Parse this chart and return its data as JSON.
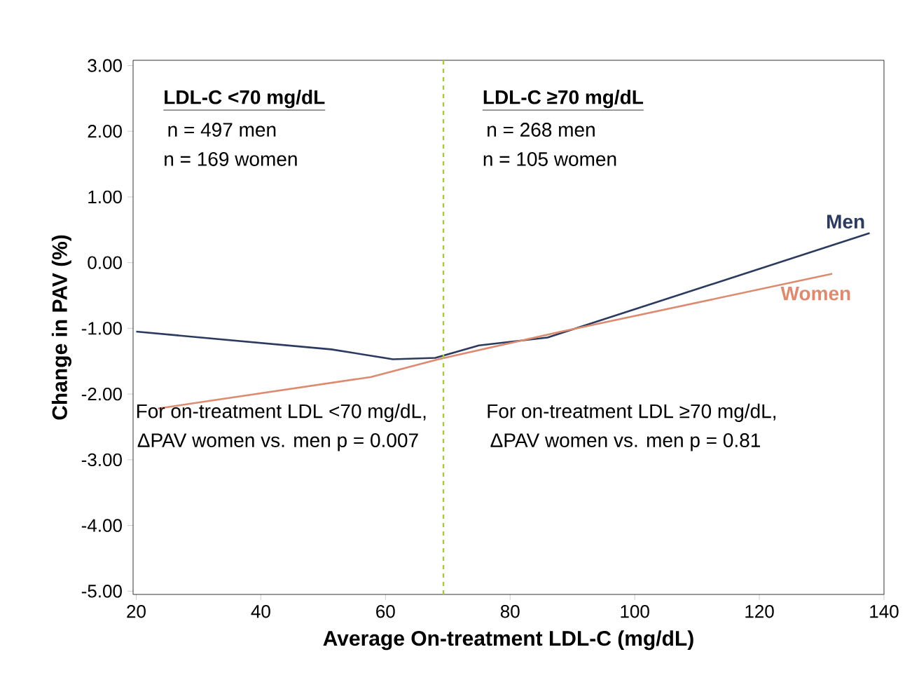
{
  "chart_data": {
    "type": "line",
    "xlabel": "Average On-treatment LDL-C (mg/dL)",
    "ylabel": "Change in PAV (%)",
    "xlim": [
      19.5,
      140
    ],
    "ylim": [
      -5.05,
      3.08
    ],
    "xticks": [
      20,
      40,
      60,
      80,
      100,
      120,
      140
    ],
    "yticks": [
      {
        "value": 3,
        "label": "3.00"
      },
      {
        "value": 2,
        "label": "2.00"
      },
      {
        "value": 1,
        "label": "1.00"
      },
      {
        "value": 0,
        "label": "0.00"
      },
      {
        "value": -1,
        "label": "-1.00"
      },
      {
        "value": -2,
        "label": "-2.00"
      },
      {
        "value": -3,
        "label": "-3.00"
      },
      {
        "value": -4,
        "label": "-4.00"
      },
      {
        "value": -5,
        "label": "-5.00"
      }
    ],
    "grid": false,
    "marker": "none",
    "line_style": "solid",
    "series": [
      {
        "name": "Men",
        "color": "#2b3a5e",
        "x": [
          20,
          51.3,
          61.2,
          68,
          75,
          86,
          137.7
        ],
        "values": [
          -1.05,
          -1.32,
          -1.47,
          -1.45,
          -1.26,
          -1.14,
          0.45
        ]
      },
      {
        "name": "Women",
        "color": "#dc8a70",
        "x": [
          23.5,
          57.7,
          68.5,
          87.7,
          131.7
        ],
        "values": [
          -2.22,
          -1.74,
          -1.47,
          -1.06,
          -0.17
        ]
      }
    ],
    "ref_lines": [
      {
        "axis": "x",
        "value": 69.3,
        "color": "#a8c44a",
        "line_style": "dashed"
      }
    ],
    "annotations": [
      "LDL-C <70 mg/dL",
      "n = 497 men",
      "n = 169 women",
      "LDL-C ≥70 mg/dL",
      "n = 268 men",
      "n = 105 women",
      "For on-treatment LDL <70 mg/dL,",
      "ΔPAV women vs. men p = 0.007",
      "For on-treatment LDL ≥70 mg/dL,",
      "ΔPAV women vs. men  p = 0.81"
    ]
  }
}
